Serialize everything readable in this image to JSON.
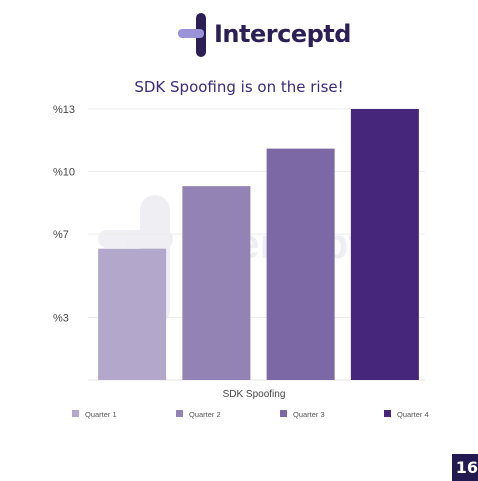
{
  "brand": {
    "name": "Interceptd",
    "color": "#2b1f55",
    "accent": "#9b93d8"
  },
  "page_number": "16",
  "chart_data": {
    "type": "bar",
    "title": "SDK Spoofing is on the rise!",
    "xlabel": "SDK Spoofing",
    "ylabel": "",
    "ylim": [
      0,
      13
    ],
    "yticks": [
      3,
      7,
      10,
      13
    ],
    "ytick_labels": [
      "%3",
      "%7",
      "%10",
      "%13"
    ],
    "grid": true,
    "legend_position": "bottom",
    "series": [
      {
        "name": "Quarter 1",
        "value": 6.3,
        "color": "#b3a8cc"
      },
      {
        "name": "Quarter 2",
        "value": 9.3,
        "color": "#9382b4"
      },
      {
        "name": "Quarter 3",
        "value": 11.1,
        "color": "#7b68a4"
      },
      {
        "name": "Quarter 4",
        "value": 13,
        "color": "#45267a"
      }
    ]
  }
}
